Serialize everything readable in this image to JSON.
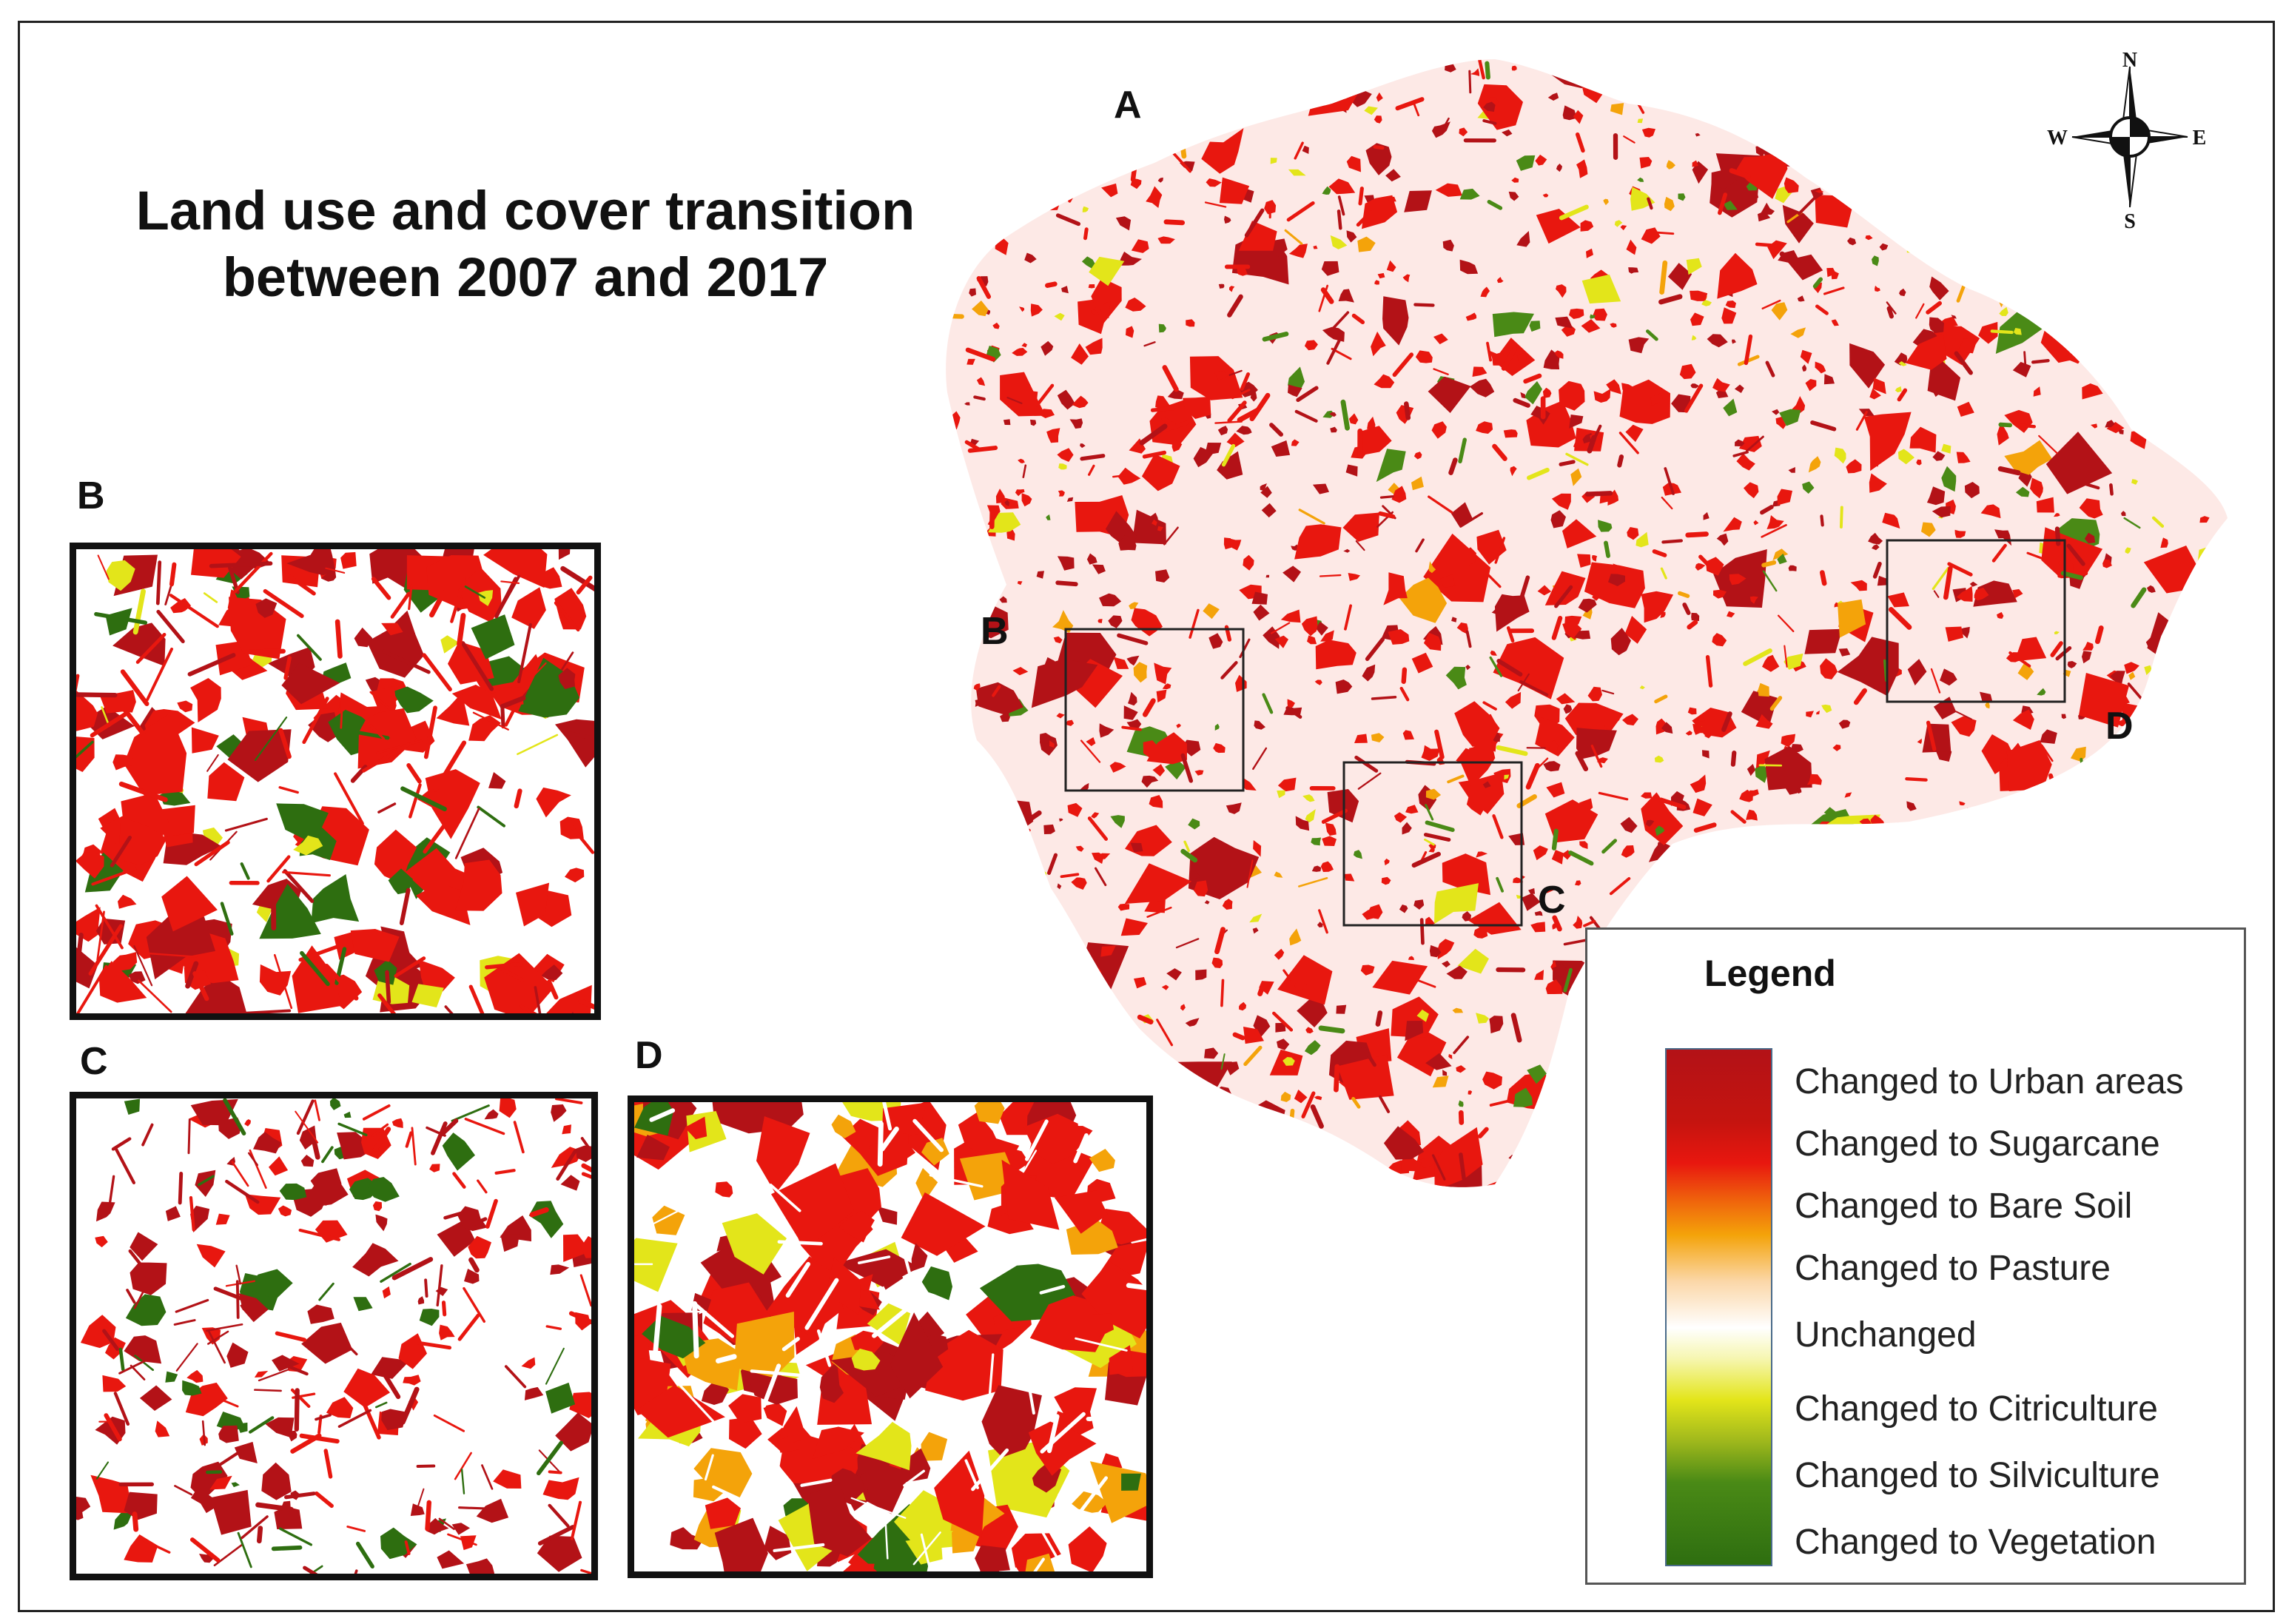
{
  "title": {
    "line1": "Land use and cover transition",
    "line2": "between 2007 and 2017"
  },
  "panel_labels": {
    "main": "A",
    "b_inset": "B",
    "c_inset": "C",
    "d_inset": "D",
    "b_box": "B",
    "c_box": "C",
    "d_box": "D"
  },
  "compass": {
    "north": "N",
    "south": "S",
    "east": "E",
    "west": "W"
  },
  "legend": {
    "title": "Legend",
    "items": [
      {
        "label": "Changed to Urban areas",
        "color": "#b31217"
      },
      {
        "label": "Changed to Sugarcane",
        "color": "#e8170f"
      },
      {
        "label": "Changed to Bare Soil",
        "color": "#f4a30a"
      },
      {
        "label": "Changed to Pasture",
        "color": "#fbd7a8"
      },
      {
        "label": "Unchanged",
        "color": "#ffffff"
      },
      {
        "label": "Changed to Citriculture",
        "color": "#e3e51a"
      },
      {
        "label": "Changed to Silviculture",
        "color": "#4a8a16"
      },
      {
        "label": "Changed to Vegetation",
        "color": "#2e6e10"
      }
    ]
  },
  "colors": {
    "urban": "#b31217",
    "sugarcane": "#e8170f",
    "bare_soil": "#f4a30a",
    "citriculture": "#e3e51a",
    "silviculture": "#4a8a16",
    "vegetation": "#2e6e10"
  }
}
